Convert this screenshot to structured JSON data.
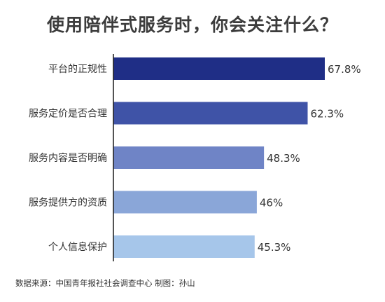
{
  "title": "使用陪伴式服务时，你会关注什么？",
  "source_note": "数据来源：中国青年报社社会调查中心 制图：孙山",
  "chart_data": {
    "type": "bar",
    "orientation": "horizontal",
    "title": "使用陪伴式服务时，你会关注什么？",
    "xlabel": "",
    "ylabel": "",
    "unit": "%",
    "xlim": [
      0,
      67.8
    ],
    "grid": false,
    "categories": [
      "平台的正规性",
      "服务定价是否合理",
      "服务内容是否明确",
      "服务提供方的资质",
      "个人信息保护"
    ],
    "values": [
      67.8,
      62.3,
      48.3,
      46,
      45.3
    ],
    "value_labels": [
      "67.8%",
      "62.3%",
      "48.3%",
      "46%",
      "45.3%"
    ],
    "colors": [
      "#1f2e86",
      "#3f53a7",
      "#6f84c6",
      "#8aa6d8",
      "#a6c6ea"
    ],
    "axis_color": "#1a1a1a"
  }
}
